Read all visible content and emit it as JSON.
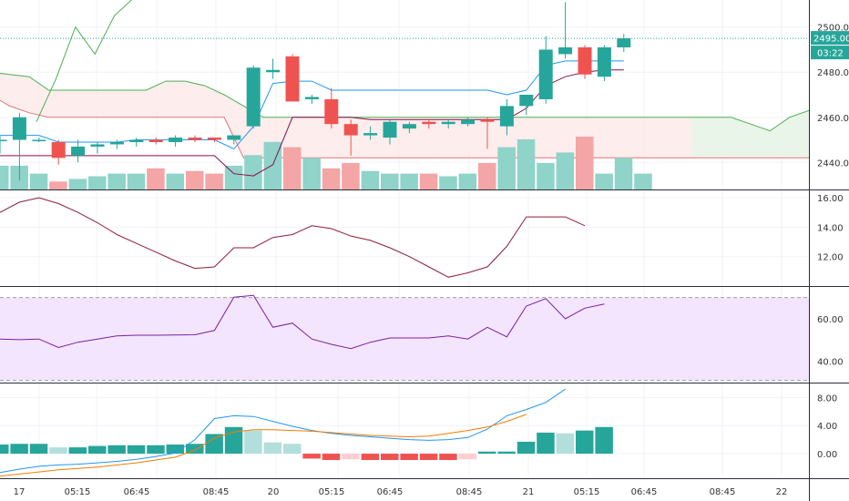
{
  "chart_data": [
    {
      "type": "candlestick",
      "panel": "price",
      "ylim": [
        2428,
        2512
      ],
      "y_ticks": [
        "2500.00",
        "2480.00",
        "2460.00",
        "2440.00"
      ],
      "y_tick_values": [
        2500,
        2480,
        2460,
        2440
      ],
      "price_tag": "2495.00",
      "countdown_tag": "03:22",
      "last_price": 2495,
      "candles": [
        {
          "o": 2450,
          "h": 2452,
          "l": 2444,
          "c": 2450
        },
        {
          "o": 2450,
          "h": 2462,
          "l": 2432,
          "c": 2460
        },
        {
          "o": 2450,
          "h": 2451,
          "l": 2449,
          "c": 2450
        },
        {
          "o": 2449,
          "h": 2450,
          "l": 2439,
          "c": 2442
        },
        {
          "o": 2443,
          "h": 2450,
          "l": 2440,
          "c": 2447
        },
        {
          "o": 2447,
          "h": 2449,
          "l": 2444,
          "c": 2448
        },
        {
          "o": 2448,
          "h": 2450,
          "l": 2446,
          "c": 2449
        },
        {
          "o": 2449,
          "h": 2451,
          "l": 2447,
          "c": 2450
        },
        {
          "o": 2450,
          "h": 2451,
          "l": 2448,
          "c": 2449
        },
        {
          "o": 2449,
          "h": 2452,
          "l": 2447,
          "c": 2451
        },
        {
          "o": 2451,
          "h": 2452,
          "l": 2449,
          "c": 2450
        },
        {
          "o": 2451,
          "h": 2451,
          "l": 2449,
          "c": 2450
        },
        {
          "o": 2450,
          "h": 2452,
          "l": 2448,
          "c": 2452
        },
        {
          "o": 2456,
          "h": 2483,
          "l": 2455,
          "c": 2482
        },
        {
          "o": 2480,
          "h": 2486,
          "l": 2477,
          "c": 2481
        },
        {
          "o": 2487,
          "h": 2488,
          "l": 2467,
          "c": 2467
        },
        {
          "o": 2468,
          "h": 2470,
          "l": 2466,
          "c": 2469
        },
        {
          "o": 2468,
          "h": 2473,
          "l": 2455,
          "c": 2457
        },
        {
          "o": 2457,
          "h": 2459,
          "l": 2443,
          "c": 2452
        },
        {
          "o": 2452,
          "h": 2456,
          "l": 2450,
          "c": 2453
        },
        {
          "o": 2451,
          "h": 2459,
          "l": 2448,
          "c": 2458
        },
        {
          "o": 2455,
          "h": 2458,
          "l": 2453,
          "c": 2457
        },
        {
          "o": 2458,
          "h": 2459,
          "l": 2455,
          "c": 2457
        },
        {
          "o": 2457,
          "h": 2459,
          "l": 2455,
          "c": 2458
        },
        {
          "o": 2457,
          "h": 2460,
          "l": 2456,
          "c": 2459
        },
        {
          "o": 2459,
          "h": 2460,
          "l": 2446,
          "c": 2458
        },
        {
          "o": 2456,
          "h": 2468,
          "l": 2452,
          "c": 2465
        },
        {
          "o": 2465,
          "h": 2470,
          "l": 2461,
          "c": 2470
        },
        {
          "o": 2468,
          "h": 2496,
          "l": 2466,
          "c": 2490
        },
        {
          "o": 2488,
          "h": 2511,
          "l": 2486,
          "c": 2491
        },
        {
          "o": 2491,
          "h": 2492,
          "l": 2477,
          "c": 2479
        },
        {
          "o": 2478,
          "h": 2492,
          "l": 2476,
          "c": 2491
        },
        {
          "o": 2491,
          "h": 2497,
          "l": 2489,
          "c": 2495
        }
      ],
      "overlays": {
        "conversion_line": [
          2452,
          2452,
          2452,
          2449,
          2449,
          2449,
          2449,
          2450,
          2450,
          2450,
          2450,
          2450,
          2446,
          2456,
          2475,
          2476,
          2476,
          2472,
          2472,
          2472,
          2472,
          2472,
          2472,
          2472,
          2472,
          2472,
          2470,
          2472,
          2483,
          2485,
          2485,
          2485,
          2485
        ],
        "base_line": [
          2443,
          2443,
          2443,
          2443,
          2443,
          2443,
          2443,
          2443,
          2443,
          2443,
          2443,
          2443,
          2435,
          2434,
          2439,
          2460,
          2460,
          2460,
          2460,
          2459,
          2459,
          2459,
          2459,
          2459,
          2459,
          2459,
          2459,
          2464,
          2474,
          2478,
          2480,
          2481,
          2481
        ],
        "cloud_a": [
          2480,
          2479,
          2478,
          2472,
          2472,
          2472,
          2472,
          2472,
          2472,
          2476,
          2476,
          2474,
          2470,
          2465,
          2460,
          2460,
          2460,
          2460,
          2460,
          2460,
          2460,
          2460,
          2460,
          2460,
          2460,
          2460,
          2460,
          2460,
          2460,
          2460,
          2460,
          2460,
          2460,
          2460,
          2460,
          2460,
          2460,
          2460,
          2460,
          2457,
          2454,
          2460,
          2463
        ],
        "cloud_b": [
          2470,
          2465,
          2462,
          2460,
          2460,
          2460,
          2460,
          2460,
          2460,
          2460,
          2460,
          2460,
          2460,
          2442,
          2442,
          2442,
          2442,
          2442,
          2442,
          2442,
          2442,
          2442,
          2442,
          2442,
          2442,
          2442,
          2442,
          2442,
          2442,
          2442,
          2442,
          2442,
          2442,
          2442,
          2442,
          2442,
          2442,
          2442,
          2442,
          2442,
          2442,
          2442,
          2442
        ],
        "lagging_span": [
          2458,
          2477,
          2500,
          2488,
          2505,
          2513
        ]
      },
      "volume": [
        0.45,
        0.45,
        0.3,
        0.15,
        0.2,
        0.25,
        0.3,
        0.3,
        0.4,
        0.3,
        0.35,
        0.3,
        0.45,
        0.65,
        0.9,
        0.8,
        0.6,
        0.4,
        0.5,
        0.35,
        0.3,
        0.3,
        0.3,
        0.25,
        0.3,
        0.5,
        0.8,
        0.95,
        0.5,
        0.7,
        1.0,
        0.3,
        0.6,
        0.3
      ]
    },
    {
      "type": "line",
      "panel": "indicator",
      "ylim": [
        10,
        16.5
      ],
      "y_ticks": [
        "16.00",
        "14.00",
        "12.00"
      ],
      "y_tick_values": [
        16,
        14,
        12
      ],
      "values": [
        15.0,
        15.7,
        16.0,
        15.6,
        15.0,
        14.3,
        13.5,
        12.9,
        12.3,
        11.7,
        11.2,
        11.3,
        12.6,
        12.6,
        13.3,
        13.5,
        14.1,
        13.9,
        13.4,
        13.1,
        12.6,
        12.0,
        11.3,
        10.6,
        10.9,
        11.3,
        12.7,
        14.7,
        14.7,
        14.7,
        14.1
      ]
    },
    {
      "type": "line",
      "panel": "oscillator",
      "ylim": [
        30,
        75
      ],
      "band": [
        31,
        70
      ],
      "y_ticks": [
        "60.00",
        "40.00"
      ],
      "y_tick_values": [
        60,
        40
      ],
      "values": [
        50.5,
        50.2,
        50.5,
        46.5,
        49.0,
        50.5,
        52.0,
        52.3,
        52.3,
        52.4,
        52.5,
        54.5,
        70.2,
        71.0,
        56.0,
        58.0,
        50.5,
        48.0,
        46.0,
        49.0,
        51.0,
        51.0,
        51.0,
        52.0,
        50.5,
        56.0,
        51.5,
        66.0,
        69.5,
        60.0,
        65.0,
        67.0
      ]
    },
    {
      "type": "histogram+line",
      "panel": "macd",
      "ylim": [
        -3.5,
        10
      ],
      "y_ticks": [
        "8.00",
        "4.00",
        "0.00"
      ],
      "y_tick_values": [
        8,
        4,
        0
      ],
      "histogram": [
        1.3,
        1.4,
        1.4,
        0.9,
        0.9,
        1.1,
        1.2,
        1.2,
        1.2,
        1.3,
        1.4,
        2.8,
        3.8,
        3.3,
        1.6,
        1.4,
        -0.7,
        -0.9,
        -0.8,
        -0.9,
        -0.9,
        -0.9,
        -0.9,
        -0.9,
        -0.8,
        0.3,
        0.3,
        1.7,
        3.0,
        2.9,
        3.3,
        3.8
      ],
      "macd_line": [
        -2.7,
        -2.2,
        -1.8,
        -1.6,
        -1.5,
        -1.3,
        -1.1,
        -0.8,
        -0.4,
        0.1,
        2.0,
        5.0,
        5.4,
        5.3,
        4.6,
        3.9,
        3.3,
        2.9,
        2.6,
        2.4,
        2.2,
        2.0,
        1.9,
        2.0,
        2.3,
        3.5,
        5.4,
        6.3,
        7.3,
        9.2
      ],
      "signal_line": [
        -3.2,
        -2.9,
        -2.6,
        -2.3,
        -2.1,
        -1.9,
        -1.6,
        -1.3,
        -0.9,
        -0.5,
        0.5,
        2.2,
        3.1,
        3.4,
        3.4,
        3.3,
        3.2,
        3.0,
        2.8,
        2.6,
        2.5,
        2.4,
        2.5,
        2.9,
        3.3,
        3.8,
        4.6,
        5.6
      ]
    }
  ],
  "x_axis": {
    "labels": [
      "17",
      "05:15",
      "06:45",
      "08:45",
      "20",
      "05:15",
      "06:45",
      "08:45",
      "21",
      "05:15",
      "06:45",
      "08:45",
      "22"
    ]
  },
  "colors": {
    "up": "#26a69a",
    "down": "#ef5350",
    "up_volume": "#8fd3c9",
    "down_volume": "#f4a5a5",
    "conversion_line": "#2196f3",
    "base_line": "#880e4f",
    "cloud_a": "#4caf50",
    "cloud_b": "#e57373",
    "indicator": "#8e1c3a",
    "oscillator": "#7b1fa2",
    "oscillator_band": "#f3e5fd",
    "macd_line": "#2196f3",
    "signal_line": "#f57c00",
    "hist_pos_strong": "#26a69a",
    "hist_pos_weak": "#b2dfdb",
    "hist_neg_strong": "#ef5350",
    "hist_neg_weak": "#ffcdd2",
    "tag": "#26a69a"
  }
}
